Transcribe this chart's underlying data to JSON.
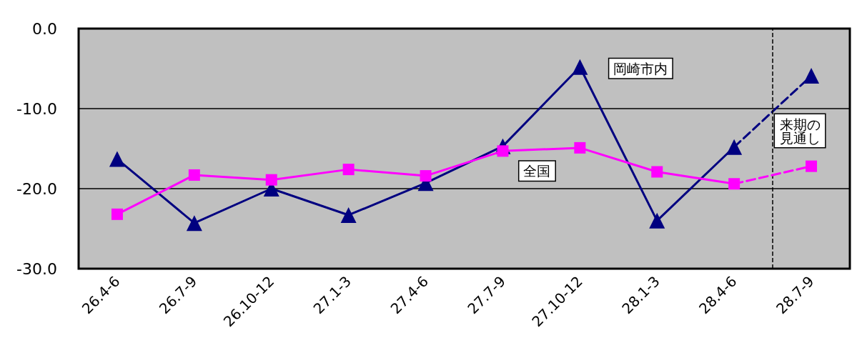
{
  "chart_data": {
    "type": "line",
    "categories": [
      "26.4-6",
      "26.7-9",
      "26.10-12",
      "27.1-3",
      "27.4-6",
      "27.7-9",
      "27.10-12",
      "28.1-3",
      "28.4-6",
      "28.7-9"
    ],
    "series": [
      {
        "name": "岡崎市内",
        "color": "#000080",
        "marker": "triangle",
        "line_style": "solid",
        "values": [
          -16.3,
          -24.3,
          -20.0,
          -23.3,
          -19.3,
          -14.7,
          -4.8,
          -24.0,
          -14.8,
          null
        ]
      },
      {
        "name": "全国",
        "color": "#ff00ff",
        "marker": "square",
        "line_style": "solid",
        "values": [
          -23.2,
          -18.3,
          -18.9,
          -17.6,
          -18.4,
          -15.3,
          -14.9,
          -17.9,
          -19.4,
          null
        ]
      },
      {
        "color": "#000080",
        "marker": "triangle",
        "line_style": "dashed",
        "values": [
          null,
          null,
          null,
          null,
          null,
          null,
          null,
          null,
          -14.8,
          -5.9
        ]
      },
      {
        "color": "#ff00ff",
        "marker": "square",
        "line_style": "dashed",
        "values": [
          null,
          null,
          null,
          null,
          null,
          null,
          null,
          null,
          -19.4,
          -17.2
        ]
      }
    ],
    "ylim": [
      -30,
      0
    ],
    "yticks": [
      {
        "value": -30,
        "label": "-30.0"
      },
      {
        "value": -20,
        "label": "-20.0"
      },
      {
        "value": -10,
        "label": "-10.0"
      },
      {
        "value": 0,
        "label": "0.0"
      }
    ],
    "grid": "y",
    "legend": false,
    "ref_lines": [
      {
        "axis": "x",
        "value": "28.7-9",
        "label": "来期の見通し",
        "line_style": "dashed",
        "color": "#000000"
      }
    ]
  }
}
